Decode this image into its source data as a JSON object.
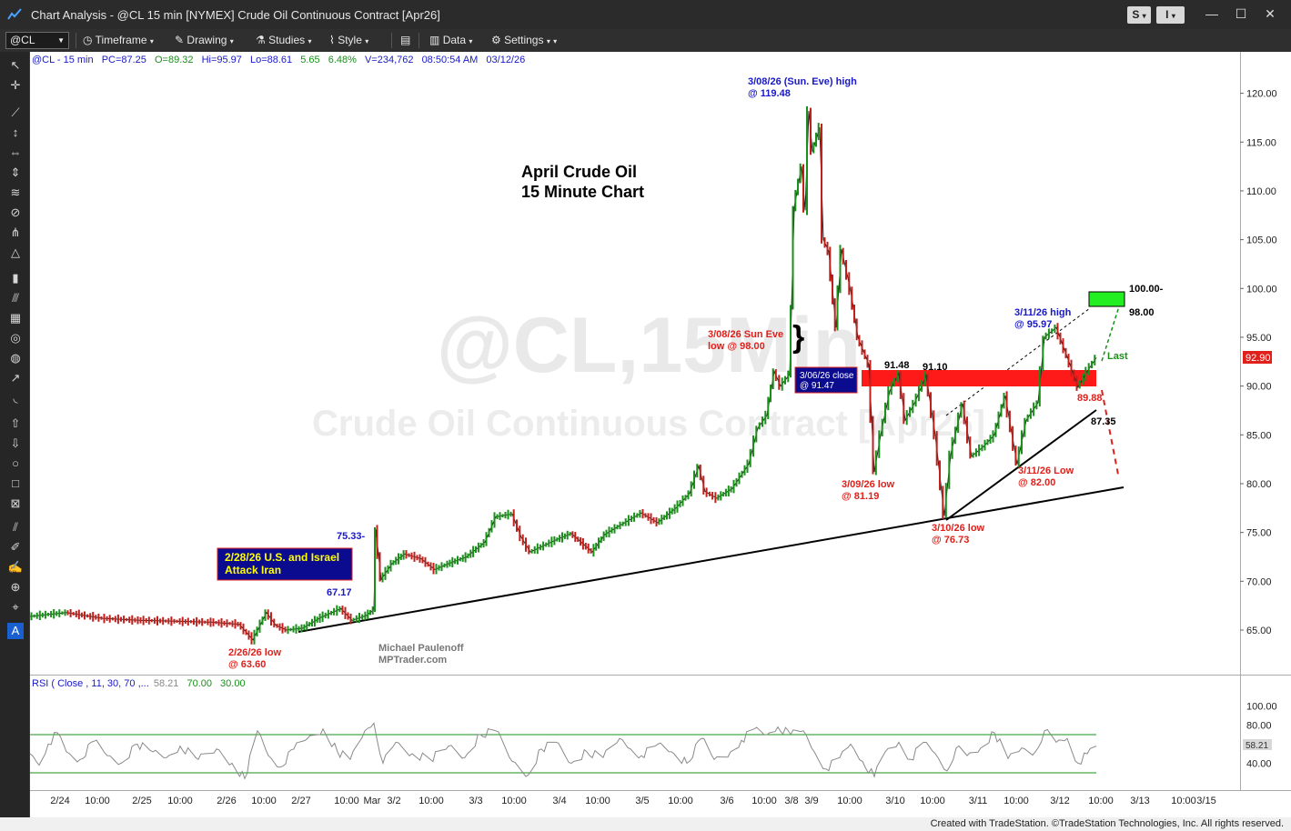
{
  "window": {
    "title": "Chart Analysis - @CL 15 min [NYMEX] Crude Oil Continuous Contract [Apr26]",
    "btn_s": "S",
    "btn_i": "I"
  },
  "toolbar": {
    "symbol": "@CL",
    "timeframe": "Timeframe",
    "drawing": "Drawing",
    "studies": "Studies",
    "style": "Style",
    "data": "Data",
    "settings": "Settings"
  },
  "colors": {
    "background": "#ffffff",
    "up_candle": "#1a8f1a",
    "down_candle": "#c0201c",
    "blue_text": "#1818c8",
    "red_text": "#e0201a",
    "green_box": "#22ee22",
    "red_band": "#ff1a1a",
    "rsi_line": "#8a8a8a",
    "rsi_overbought": "#e01010",
    "rsi_oversold": "#1a7ae0",
    "rsi_bands": "#1a8f1a",
    "last_price_bg": "#e0201a"
  },
  "footer": {
    "text": "Created with TradeStation. ©TradeStation Technologies, Inc. All rights reserved."
  },
  "chart_data": {
    "type": "line",
    "title": "April Crude Oil",
    "subtitle": "15 Minute Chart",
    "watermark": "@CL,15Min",
    "watermark2": "Crude Oil Continuous Contract [Apr26]",
    "author_name": "Michael Paulenoff",
    "author_site": "MPTrader.com",
    "status_line": {
      "symbol": "@CL - 15 min",
      "pc": "PC=87.25",
      "open": "O=89.32",
      "high": "Hi=95.97",
      "low": "Lo=88.61",
      "change": "5.65",
      "pct": "6.48%",
      "volume": "V=234,762",
      "time": "08:50:54 AM",
      "date": "03/12/26"
    },
    "y_axis": {
      "ticks": [
        120,
        115,
        110,
        105,
        100,
        95,
        90,
        85,
        80,
        75,
        70,
        65
      ],
      "tick_labels": [
        "120.00",
        "115.00",
        "110.00",
        "105.00",
        "100.00",
        "95.00",
        "90.00",
        "85.00",
        "80.00",
        "75.00",
        "70.00",
        "65.00"
      ],
      "range": [
        60.5,
        122.5
      ]
    },
    "x_axis": {
      "tick_labels": [
        "2/24",
        "10:00",
        "2/25",
        "10:00",
        "2/26",
        "10:00",
        "2/27",
        "10:00",
        "Mar",
        "3/2",
        "10:00",
        "3/3",
        "10:00",
        "3/4",
        "10:00",
        "3/5",
        "10:00",
        "3/6",
        "10:00",
        "3/8",
        "3/9",
        "10:00",
        "3/10",
        "10:00",
        "3/11",
        "10:00",
        "3/12",
        "10:00",
        "3/13",
        "10:00",
        "3/15"
      ]
    },
    "last_price": "92.90",
    "price_path": [
      [
        0,
        66.4
      ],
      [
        40,
        66.8
      ],
      [
        80,
        66.2
      ],
      [
        120,
        66.0
      ],
      [
        160,
        65.9
      ],
      [
        200,
        65.8
      ],
      [
        230,
        65.6
      ],
      [
        245,
        64.0
      ],
      [
        260,
        66.8
      ],
      [
        270,
        65.5
      ],
      [
        282,
        65.0
      ],
      [
        300,
        65.2
      ],
      [
        320,
        66.3
      ],
      [
        342,
        67.2
      ],
      [
        354,
        66.0
      ],
      [
        370,
        66.5
      ],
      [
        378,
        67.1
      ],
      [
        380,
        75.3
      ],
      [
        386,
        70.2
      ],
      [
        398,
        71.8
      ],
      [
        412,
        72.8
      ],
      [
        430,
        72.3
      ],
      [
        445,
        71.2
      ],
      [
        460,
        71.8
      ],
      [
        480,
        72.5
      ],
      [
        500,
        74.0
      ],
      [
        512,
        76.6
      ],
      [
        530,
        76.9
      ],
      [
        540,
        74.5
      ],
      [
        550,
        73.0
      ],
      [
        575,
        74.1
      ],
      [
        595,
        74.9
      ],
      [
        618,
        73.0
      ],
      [
        632,
        74.8
      ],
      [
        650,
        75.8
      ],
      [
        672,
        77.0
      ],
      [
        690,
        76.0
      ],
      [
        710,
        77.5
      ],
      [
        725,
        79.0
      ],
      [
        735,
        81.8
      ],
      [
        742,
        79.2
      ],
      [
        755,
        78.5
      ],
      [
        772,
        79.5
      ],
      [
        790,
        82.0
      ],
      [
        800,
        85.7
      ],
      [
        810,
        87.0
      ],
      [
        818,
        91.5
      ],
      [
        825,
        90.0
      ],
      [
        835,
        91.2
      ],
      [
        837,
        98.0
      ],
      [
        840,
        108.3
      ],
      [
        848,
        112.5
      ],
      [
        852,
        108.0
      ],
      [
        856,
        118.2
      ],
      [
        860,
        114.0
      ],
      [
        868,
        116.5
      ],
      [
        872,
        105.0
      ],
      [
        878,
        103.8
      ],
      [
        886,
        96.0
      ],
      [
        892,
        104.0
      ],
      [
        902,
        99.8
      ],
      [
        910,
        95.0
      ],
      [
        922,
        92.2
      ],
      [
        928,
        81.2
      ],
      [
        935,
        85.0
      ],
      [
        945,
        89.5
      ],
      [
        955,
        91.3
      ],
      [
        962,
        86.5
      ],
      [
        972,
        88.2
      ],
      [
        985,
        91.1
      ],
      [
        995,
        85.0
      ],
      [
        1005,
        76.7
      ],
      [
        1012,
        83.0
      ],
      [
        1025,
        88.2
      ],
      [
        1035,
        82.8
      ],
      [
        1048,
        83.8
      ],
      [
        1060,
        85.0
      ],
      [
        1072,
        89.0
      ],
      [
        1085,
        82.0
      ],
      [
        1095,
        86.5
      ],
      [
        1108,
        88.3
      ],
      [
        1115,
        95.0
      ],
      [
        1128,
        96.0
      ],
      [
        1140,
        93.0
      ],
      [
        1152,
        89.9
      ],
      [
        1162,
        91.5
      ],
      [
        1172,
        92.9
      ]
    ],
    "rsi": {
      "label": "RSI ( Close , 11, 30, 70 ,... ",
      "value": "58.21",
      "overbought": "70.00",
      "oversold": "30.00",
      "ticks": [
        "100.00",
        "80.00",
        "40.00"
      ],
      "path": [
        [
          0,
          50
        ],
        [
          10,
          38
        ],
        [
          20,
          60
        ],
        [
          30,
          72
        ],
        [
          40,
          52
        ],
        [
          55,
          44
        ],
        [
          70,
          63
        ],
        [
          85,
          48
        ],
        [
          100,
          40
        ],
        [
          118,
          60
        ],
        [
          135,
          52
        ],
        [
          150,
          46
        ],
        [
          165,
          58
        ],
        [
          185,
          44
        ],
        [
          205,
          55
        ],
        [
          222,
          40
        ],
        [
          236,
          24
        ],
        [
          250,
          74
        ],
        [
          262,
          48
        ],
        [
          275,
          36
        ],
        [
          290,
          55
        ],
        [
          305,
          66
        ],
        [
          322,
          76
        ],
        [
          338,
          52
        ],
        [
          352,
          44
        ],
        [
          368,
          74
        ],
        [
          378,
          82
        ],
        [
          388,
          40
        ],
        [
          402,
          62
        ],
        [
          420,
          50
        ],
        [
          440,
          44
        ],
        [
          460,
          58
        ],
        [
          478,
          46
        ],
        [
          495,
          70
        ],
        [
          512,
          74
        ],
        [
          530,
          42
        ],
        [
          548,
          28
        ],
        [
          562,
          55
        ],
        [
          578,
          62
        ],
        [
          595,
          40
        ],
        [
          612,
          52
        ],
        [
          630,
          46
        ],
        [
          648,
          66
        ],
        [
          660,
          55
        ],
        [
          672,
          48
        ],
        [
          690,
          60
        ],
        [
          705,
          52
        ],
        [
          722,
          40
        ],
        [
          738,
          66
        ],
        [
          752,
          44
        ],
        [
          770,
          52
        ],
        [
          782,
          64
        ],
        [
          796,
          76
        ],
        [
          810,
          70
        ],
        [
          822,
          78
        ],
        [
          836,
          70
        ],
        [
          850,
          74
        ],
        [
          862,
          52
        ],
        [
          875,
          34
        ],
        [
          890,
          46
        ],
        [
          902,
          60
        ],
        [
          915,
          42
        ],
        [
          928,
          26
        ],
        [
          940,
          52
        ],
        [
          955,
          62
        ],
        [
          968,
          44
        ],
        [
          982,
          62
        ],
        [
          995,
          50
        ],
        [
          1008,
          32
        ],
        [
          1018,
          56
        ],
        [
          1030,
          48
        ],
        [
          1045,
          56
        ],
        [
          1060,
          72
        ],
        [
          1075,
          45
        ],
        [
          1090,
          56
        ],
        [
          1105,
          52
        ],
        [
          1115,
          74
        ],
        [
          1128,
          62
        ],
        [
          1140,
          66
        ],
        [
          1152,
          40
        ],
        [
          1162,
          50
        ],
        [
          1172,
          58
        ]
      ]
    },
    "annotations": {
      "attack_box": "2/28/26 U.S. and Israel Attack Iran",
      "attack_line1": "2/28/26 U.S. and Israel",
      "attack_line2": "Attack Iran",
      "high_1": "3/08/26 (Sun. Eve) high",
      "high_2": "@ 119.48",
      "sun_eve_1": "3/08/26 Sun Eve",
      "sun_eve_2": "low @ 98.00",
      "close_1": "3/06/26 close",
      "close_2": "@ 91.47",
      "low_0309_1": "3/09/26 low",
      "low_0309_2": "@ 81.19",
      "low_0310_1": "3/10/26 low",
      "low_0310_2": "@ 76.73",
      "low_0311_1": "3/11/26 Low",
      "low_0311_2": "@ 82.00",
      "high_0311_1": "3/11/26 high",
      "high_0311_2": "@ 95.97",
      "low_0226_1": "2/26/26 low",
      "low_0226_2": "@ 63.60",
      "lbl_6717": "67.17",
      "lbl_7533": "75.33-",
      "lbl_9148": "91.48",
      "lbl_9110": "91.10",
      "lbl_10000": "100.00-",
      "lbl_9800": "98.00",
      "lbl_8988": "89.88",
      "lbl_8735": "87.35",
      "lbl_last": "Last"
    }
  }
}
